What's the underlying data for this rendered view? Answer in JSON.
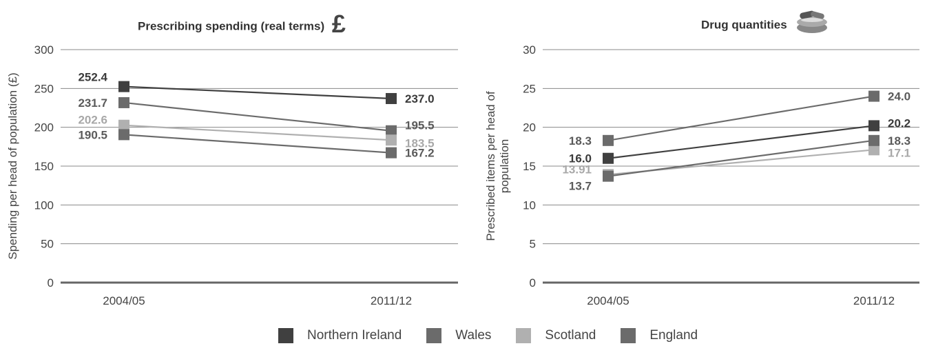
{
  "charts": [
    {
      "title": "Prescribing spending (real terms)",
      "icon": "pound-sign-icon",
      "chart_data": {
        "type": "line",
        "categories": [
          "2004/05",
          "2011/12"
        ],
        "ylabel": "Spending per head of population (£)",
        "ylim": [
          0,
          300
        ],
        "yticks": [
          0,
          50,
          100,
          150,
          200,
          250,
          300
        ],
        "grid": true,
        "series": [
          {
            "name": "Northern Ireland",
            "values": [
              252.4,
              237.0
            ],
            "labels": [
              "252.4",
              "237.0"
            ]
          },
          {
            "name": "Wales",
            "values": [
              231.7,
              195.5
            ],
            "labels": [
              "231.7",
              "195.5"
            ]
          },
          {
            "name": "Scotland",
            "values": [
              202.6,
              183.5
            ],
            "labels": [
              "202.6",
              "183.5"
            ]
          },
          {
            "name": "England",
            "values": [
              190.5,
              167.2
            ],
            "labels": [
              "190.5",
              "167.2"
            ]
          }
        ]
      }
    },
    {
      "title": "Drug quantities",
      "icon": "pills-icon",
      "chart_data": {
        "type": "line",
        "categories": [
          "2004/05",
          "2011/12"
        ],
        "ylabel": "Prescribed items per head of population",
        "ylim": [
          0,
          30
        ],
        "yticks": [
          0,
          5,
          10,
          15,
          20,
          25,
          30
        ],
        "grid": true,
        "series": [
          {
            "name": "Northern Ireland",
            "values": [
              16.0,
              20.2
            ],
            "labels": [
              "16.0",
              "20.2"
            ]
          },
          {
            "name": "Wales",
            "values": [
              18.3,
              24.0
            ],
            "labels": [
              "18.3",
              "24.0"
            ]
          },
          {
            "name": "Scotland",
            "values": [
              13.91,
              17.1
            ],
            "labels": [
              "13.91",
              "17.1"
            ]
          },
          {
            "name": "England",
            "values": [
              13.7,
              18.3
            ],
            "labels": [
              "13.7",
              "18.3"
            ]
          }
        ]
      }
    }
  ],
  "legend": [
    {
      "label": "Northern Ireland",
      "color": "#404040"
    },
    {
      "label": "Wales",
      "color": "#6b6b6b"
    },
    {
      "label": "Scotland",
      "color": "#b0b0b0"
    },
    {
      "label": "England",
      "color": "#6b6b6b"
    }
  ],
  "colors": {
    "Northern Ireland": "#404040",
    "Wales": "#6b6b6b",
    "Scotland": "#b0b0b0",
    "England": "#6b6b6b"
  }
}
